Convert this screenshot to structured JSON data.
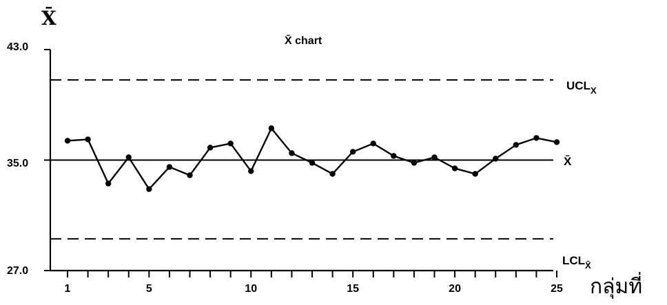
{
  "chart_data": {
    "type": "line",
    "title": "X̄ chart",
    "ylabel": "X̄",
    "xlabel": "กลุ่มที่",
    "ylim": [
      27.0,
      43.0
    ],
    "xlim": [
      1,
      25
    ],
    "y_ticks": [
      "27.0",
      "35.0",
      "43.0"
    ],
    "x_ticks": [
      "1",
      "5",
      "10",
      "15",
      "20",
      "25"
    ],
    "x_tick_values": [
      1,
      5,
      10,
      15,
      20,
      25
    ],
    "grid": false,
    "control_lines": [
      {
        "label": "UCL",
        "subscript": "X",
        "value": 40.8,
        "style": "dashed"
      },
      {
        "label": "X̄",
        "subscript": "",
        "value": 35.0,
        "style": "solid"
      },
      {
        "label": "LCL",
        "subscript": "X̄",
        "value": 29.3,
        "style": "dashed"
      }
    ],
    "series": [
      {
        "x": [
          1,
          2,
          3,
          4,
          5,
          6,
          7,
          8,
          9,
          10,
          11,
          12,
          13,
          14,
          15,
          16,
          17,
          18,
          19,
          20,
          21,
          22,
          23,
          24,
          25
        ],
        "values": [
          36.4,
          36.5,
          33.3,
          35.2,
          32.9,
          34.5,
          33.9,
          35.9,
          36.2,
          34.2,
          37.3,
          35.5,
          34.8,
          34.0,
          35.6,
          36.2,
          35.3,
          34.8,
          35.2,
          34.4,
          34.0,
          35.1,
          36.1,
          36.6,
          36.3
        ]
      }
    ]
  }
}
